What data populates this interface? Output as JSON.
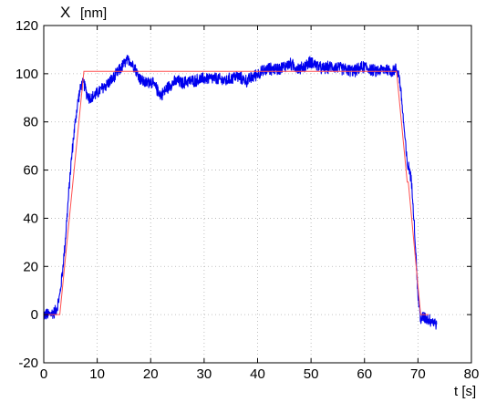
{
  "chart_data": {
    "type": "line",
    "title": "",
    "ylabel_symbol": "X",
    "ylabel_unit": "[nm]",
    "xlabel": "t [s]",
    "xlim": [
      0,
      80
    ],
    "ylim": [
      -20,
      120
    ],
    "xticks": [
      0,
      10,
      20,
      30,
      40,
      50,
      60,
      70,
      80
    ],
    "yticks": [
      -20,
      0,
      20,
      40,
      60,
      80,
      100,
      120
    ],
    "grid": true,
    "legend": "none",
    "series": [
      {
        "color": "#0000ee",
        "style": "noisy",
        "x": [
          0,
          1,
          2,
          2.5,
          3,
          3.5,
          4,
          4.5,
          5,
          5.5,
          6,
          6.5,
          7,
          7.5,
          8,
          8.5,
          9,
          10,
          11,
          12,
          13,
          14,
          15,
          16,
          16.5,
          17,
          17.5,
          18,
          19,
          20,
          21,
          22,
          23,
          24,
          25,
          26,
          27,
          28,
          30,
          32,
          34,
          36,
          38,
          40,
          42,
          44,
          46,
          48,
          50,
          52,
          54,
          56,
          58,
          60,
          62,
          64,
          65,
          66,
          66.5,
          67,
          67.5,
          68,
          68.5,
          69,
          69.5,
          70,
          70.5,
          71,
          72,
          73,
          73.5
        ],
        "y": [
          0,
          0,
          1,
          3,
          8,
          18,
          30,
          45,
          60,
          72,
          82,
          90,
          95,
          96,
          92,
          90,
          90,
          92,
          94,
          96,
          98,
          101,
          104,
          106,
          104,
          103,
          100,
          98,
          96,
          97,
          94,
          91,
          94,
          96,
          97,
          96,
          97,
          97,
          98,
          98,
          97,
          99,
          97,
          100,
          102,
          102,
          104,
          102,
          105,
          102,
          103,
          102,
          101,
          103,
          101,
          102,
          101,
          102,
          99,
          88,
          75,
          62,
          60,
          50,
          30,
          8,
          -2,
          -1,
          -2,
          -3,
          -4
        ],
        "noise": 1.8
      },
      {
        "color": "#ff5050",
        "style": "reference",
        "x": [
          0,
          3,
          7.5,
          27,
          66,
          68,
          68.2,
          70.5,
          72
        ],
        "y": [
          0,
          0,
          101,
          101,
          101,
          55,
          55,
          0,
          0
        ]
      }
    ]
  }
}
